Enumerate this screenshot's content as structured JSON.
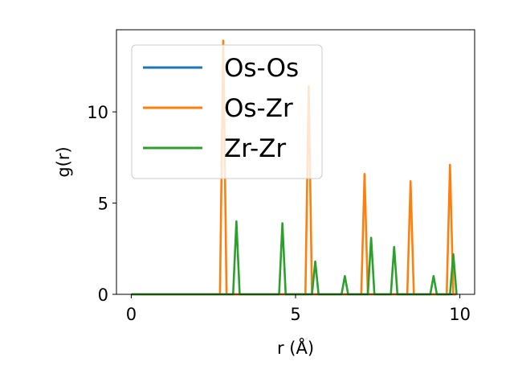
{
  "chart_data": {
    "type": "line",
    "title": "",
    "xlabel": "r (Å)",
    "ylabel": "g(r)",
    "xlim": [
      -0.45,
      10.45
    ],
    "ylim": [
      0,
      14.5
    ],
    "xticks": [
      0,
      5,
      10
    ],
    "yticks": [
      0,
      5,
      10
    ],
    "grid": false,
    "legend_position": "top-left",
    "series": [
      {
        "name": "Os-Os",
        "color": "#1f77b4",
        "x": [
          0,
          9.9
        ],
        "y": [
          0,
          0
        ]
      },
      {
        "name": "Os-Zr",
        "color": "#ff7f0e",
        "x": [
          0,
          2.7,
          2.8,
          2.9,
          5.3,
          5.4,
          5.5,
          7.0,
          7.1,
          7.2,
          8.4,
          8.5,
          8.6,
          9.6,
          9.7,
          9.8,
          9.9
        ],
        "y": [
          0,
          0,
          13.9,
          0,
          0,
          11.4,
          0,
          0,
          6.6,
          0,
          0,
          6.2,
          0,
          0,
          7.1,
          0,
          0
        ]
      },
      {
        "name": "Zr-Zr",
        "color": "#2ca02c",
        "x": [
          0,
          3.1,
          3.2,
          3.3,
          4.5,
          4.6,
          4.7,
          5.5,
          5.6,
          5.7,
          6.4,
          6.5,
          6.6,
          7.2,
          7.3,
          7.4,
          7.9,
          8.0,
          8.1,
          9.1,
          9.2,
          9.3,
          9.7,
          9.8,
          9.9
        ],
        "y": [
          0,
          0,
          4.0,
          0,
          0,
          3.9,
          0,
          0,
          1.8,
          0,
          0,
          1.0,
          0,
          0,
          3.1,
          0,
          0,
          2.6,
          0,
          0,
          1.0,
          0,
          0,
          2.2,
          0
        ]
      }
    ]
  }
}
